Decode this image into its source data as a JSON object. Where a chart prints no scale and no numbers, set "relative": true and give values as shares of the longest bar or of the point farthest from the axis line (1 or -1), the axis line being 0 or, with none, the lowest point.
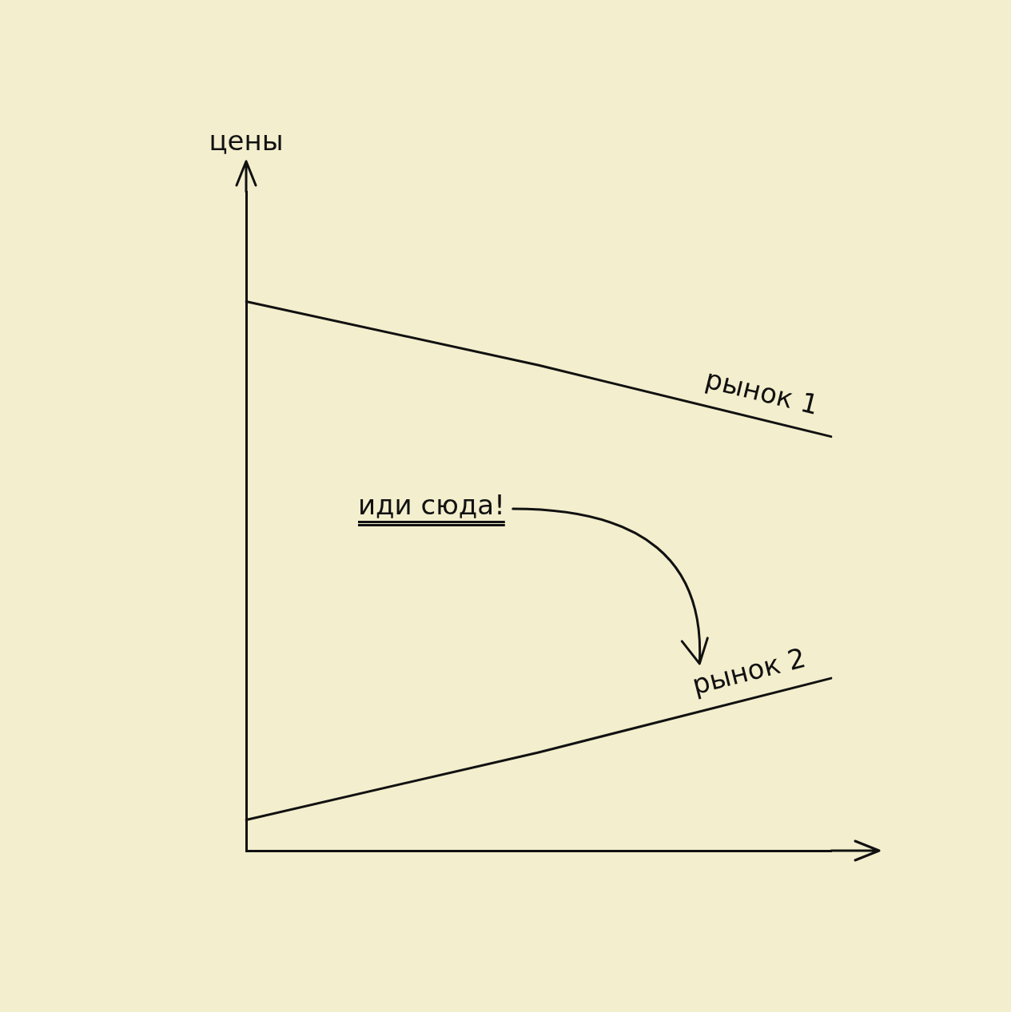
{
  "chart_data": {
    "type": "line",
    "relative": true,
    "categories": [
      null,
      null,
      null
    ],
    "series": [
      {
        "name": "рынок 1",
        "color": "#111111",
        "values": [
          1,
          0.884,
          0.754
        ]
      },
      {
        "name": "рынок 2",
        "color": "#111111",
        "values": [
          0.056,
          0.179,
          0.314
        ]
      }
    ],
    "annotations": [
      "цены",
      "иди сюда!"
    ],
    "marker": "none",
    "line_style": "solid",
    "tick_labels": false
  }
}
